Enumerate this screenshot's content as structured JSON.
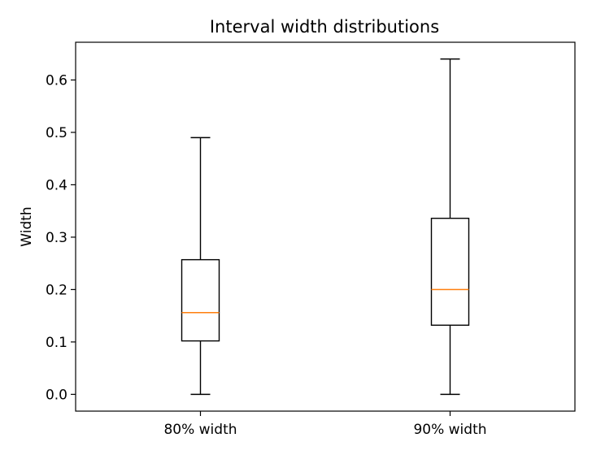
{
  "chart_data": {
    "type": "boxplot",
    "title": "Interval width distributions",
    "xlabel": "",
    "ylabel": "Width",
    "categories": [
      "80% width",
      "90% width"
    ],
    "boxes": [
      {
        "label": "80% width",
        "whisker_low": 0.0,
        "q1": 0.102,
        "median": 0.156,
        "q3": 0.257,
        "whisker_high": 0.49
      },
      {
        "label": "90% width",
        "whisker_low": 0.0,
        "q1": 0.132,
        "median": 0.2,
        "q3": 0.336,
        "whisker_high": 0.64
      }
    ],
    "ylim": [
      -0.032,
      0.672
    ],
    "yticks": [
      0.0,
      0.1,
      0.2,
      0.3,
      0.4,
      0.5,
      0.6
    ],
    "ytick_labels": [
      "0.0",
      "0.1",
      "0.2",
      "0.3",
      "0.4",
      "0.5",
      "0.6"
    ],
    "grid": false,
    "colors": {
      "box": "#000000",
      "median": "#ff7f0e",
      "axes": "#000000"
    }
  }
}
